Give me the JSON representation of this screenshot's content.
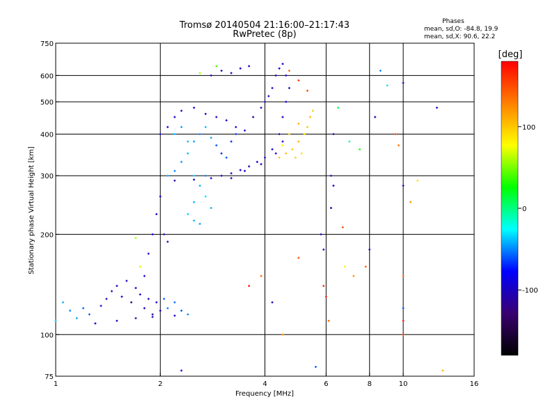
{
  "chart_data": {
    "type": "scatter",
    "title": "Tromsø 20140504 21:16:00–21:17:43",
    "subtitle": "RwPretec (8p)",
    "xlabel": "Frequency [MHz]",
    "ylabel": "Stationary phase Virtual Height [km]",
    "x_scale": "log2",
    "y_scale": "log",
    "xlim": [
      1,
      16
    ],
    "ylim": [
      75,
      750
    ],
    "x_ticks": [
      1,
      2,
      4,
      6,
      8,
      10,
      16
    ],
    "y_ticks": [
      75,
      100,
      200,
      300,
      400,
      500,
      600,
      750
    ],
    "x_grid": [
      2,
      4,
      6,
      8,
      10
    ],
    "y_grid": [
      100,
      200,
      300,
      400,
      500,
      600
    ],
    "grid": true,
    "phase_stats": {
      "heading": "Phases",
      "line_o": "mean, sd,O: -84.8, 19.9",
      "line_x": "mean, sd,X:  90.6, 22.2"
    },
    "colorbar": {
      "label": "[deg]",
      "range": [
        -180,
        180
      ],
      "ticks": [
        100,
        0,
        -100
      ],
      "colors": [
        "#000000",
        "#3a0070",
        "#0000ff",
        "#00ffff",
        "#00ff00",
        "#ffff00",
        "#ff8000",
        "#ff0000"
      ]
    },
    "points": [
      [
        1.0,
        110,
        -40
      ],
      [
        1.05,
        125,
        -40
      ],
      [
        1.1,
        118,
        -50
      ],
      [
        1.15,
        112,
        -45
      ],
      [
        1.2,
        120,
        -55
      ],
      [
        1.25,
        115,
        -60
      ],
      [
        1.3,
        108,
        -90
      ],
      [
        1.35,
        122,
        -95
      ],
      [
        1.4,
        128,
        -100
      ],
      [
        1.45,
        135,
        -95
      ],
      [
        1.5,
        140,
        -100
      ],
      [
        1.55,
        130,
        -105
      ],
      [
        1.6,
        145,
        -100
      ],
      [
        1.65,
        125,
        -110
      ],
      [
        1.7,
        138,
        -95
      ],
      [
        1.75,
        132,
        -100
      ],
      [
        1.8,
        120,
        -105
      ],
      [
        1.85,
        128,
        -100
      ],
      [
        1.9,
        115,
        -110
      ],
      [
        1.95,
        125,
        -95
      ],
      [
        2.0,
        118,
        -100
      ],
      [
        2.05,
        128,
        -60
      ],
      [
        2.1,
        120,
        -50
      ],
      [
        2.2,
        125,
        -55
      ],
      [
        2.3,
        118,
        -60
      ],
      [
        2.4,
        115,
        -50
      ],
      [
        1.5,
        110,
        -100
      ],
      [
        1.7,
        112,
        -105
      ],
      [
        1.9,
        113,
        -100
      ],
      [
        2.2,
        114,
        -95
      ],
      [
        1.8,
        150,
        -95
      ],
      [
        1.85,
        175,
        -100
      ],
      [
        1.9,
        200,
        -90
      ],
      [
        1.95,
        230,
        -100
      ],
      [
        2.0,
        260,
        -95
      ],
      [
        2.05,
        200,
        -100
      ],
      [
        2.1,
        190,
        -95
      ],
      [
        1.75,
        160,
        70
      ],
      [
        1.7,
        195,
        60
      ],
      [
        2.1,
        300,
        -40
      ],
      [
        2.2,
        310,
        -50
      ],
      [
        2.3,
        330,
        -45
      ],
      [
        2.4,
        350,
        -40
      ],
      [
        2.5,
        380,
        -45
      ],
      [
        2.6,
        400,
        -50
      ],
      [
        2.7,
        420,
        -40
      ],
      [
        2.8,
        390,
        -45
      ],
      [
        2.9,
        370,
        -60
      ],
      [
        3.0,
        350,
        -70
      ],
      [
        3.1,
        340,
        -60
      ],
      [
        3.2,
        380,
        -70
      ],
      [
        3.3,
        400,
        -65
      ],
      [
        2.2,
        400,
        -40
      ],
      [
        2.3,
        420,
        -45
      ],
      [
        2.4,
        380,
        -40
      ],
      [
        2.5,
        300,
        -35
      ],
      [
        2.6,
        280,
        -40
      ],
      [
        2.7,
        260,
        -30
      ],
      [
        2.8,
        240,
        -40
      ],
      [
        2.4,
        230,
        -35
      ],
      [
        2.5,
        220,
        -40
      ],
      [
        2.6,
        215,
        -45
      ],
      [
        2.5,
        250,
        -40
      ],
      [
        2.7,
        300,
        -50
      ],
      [
        2.0,
        400,
        -100
      ],
      [
        2.1,
        420,
        -95
      ],
      [
        2.2,
        450,
        -100
      ],
      [
        2.3,
        470,
        -100
      ],
      [
        2.5,
        480,
        -95
      ],
      [
        2.7,
        460,
        -100
      ],
      [
        2.9,
        450,
        -100
      ],
      [
        3.1,
        440,
        -95
      ],
      [
        3.3,
        420,
        -100
      ],
      [
        3.5,
        410,
        -90
      ],
      [
        3.7,
        450,
        -100
      ],
      [
        3.9,
        480,
        -95
      ],
      [
        4.0,
        500,
        -100
      ],
      [
        4.1,
        520,
        -100
      ],
      [
        4.2,
        550,
        -95
      ],
      [
        4.3,
        600,
        -100
      ],
      [
        4.4,
        630,
        -100
      ],
      [
        4.5,
        650,
        -95
      ],
      [
        4.6,
        600,
        -90
      ],
      [
        2.2,
        290,
        -100
      ],
      [
        2.5,
        292,
        -100
      ],
      [
        2.8,
        295,
        -95
      ],
      [
        3.0,
        300,
        -100
      ],
      [
        3.2,
        305,
        -95
      ],
      [
        3.4,
        312,
        -100
      ],
      [
        3.6,
        320,
        -100
      ],
      [
        3.8,
        330,
        -95
      ],
      [
        4.0,
        340,
        -100
      ],
      [
        4.2,
        360,
        -95
      ],
      [
        4.4,
        400,
        -100
      ],
      [
        4.5,
        450,
        -100
      ],
      [
        4.6,
        500,
        -95
      ],
      [
        4.7,
        550,
        -100
      ],
      [
        3.2,
        295,
        -100
      ],
      [
        3.5,
        310,
        -95
      ],
      [
        3.9,
        325,
        -100
      ],
      [
        4.3,
        350,
        -95
      ],
      [
        4.5,
        380,
        -100
      ],
      [
        3.0,
        620,
        -100
      ],
      [
        3.2,
        610,
        -95
      ],
      [
        3.4,
        630,
        -100
      ],
      [
        3.6,
        640,
        -95
      ],
      [
        2.8,
        600,
        -100
      ],
      [
        2.6,
        610,
        60
      ],
      [
        2.9,
        640,
        40
      ],
      [
        4.4,
        340,
        100
      ],
      [
        4.6,
        350,
        105
      ],
      [
        4.8,
        360,
        100
      ],
      [
        5.0,
        380,
        110
      ],
      [
        5.2,
        400,
        95
      ],
      [
        5.3,
        420,
        100
      ],
      [
        5.4,
        450,
        105
      ],
      [
        5.5,
        470,
        100
      ],
      [
        4.9,
        340,
        95
      ],
      [
        5.1,
        350,
        90
      ],
      [
        4.5,
        370,
        85
      ],
      [
        4.7,
        400,
        100
      ],
      [
        5.0,
        430,
        110
      ],
      [
        4.7,
        620,
        140
      ],
      [
        5.0,
        580,
        160
      ],
      [
        5.3,
        540,
        150
      ],
      [
        5.8,
        200,
        -100
      ],
      [
        5.9,
        180,
        -95
      ],
      [
        5.9,
        140,
        160
      ],
      [
        6.0,
        130,
        165
      ],
      [
        6.1,
        110,
        140
      ],
      [
        6.2,
        300,
        -100
      ],
      [
        6.3,
        280,
        -95
      ],
      [
        6.2,
        240,
        -100
      ],
      [
        6.3,
        400,
        -100
      ],
      [
        6.5,
        480,
        10
      ],
      [
        6.7,
        210,
        150
      ],
      [
        6.8,
        160,
        80
      ],
      [
        7.0,
        380,
        -10
      ],
      [
        7.5,
        360,
        30
      ],
      [
        7.2,
        150,
        120
      ],
      [
        7.8,
        160,
        140
      ],
      [
        8.0,
        180,
        -100
      ],
      [
        8.3,
        450,
        -100
      ],
      [
        8.6,
        620,
        -50
      ],
      [
        9.0,
        560,
        -30
      ],
      [
        9.5,
        400,
        150
      ],
      [
        9.7,
        370,
        130
      ],
      [
        10.0,
        280,
        -100
      ],
      [
        10.0,
        150,
        140
      ],
      [
        10.0,
        120,
        -60
      ],
      [
        10.0,
        110,
        170
      ],
      [
        10.0,
        100,
        160
      ],
      [
        10.0,
        570,
        -100
      ],
      [
        10.5,
        250,
        120
      ],
      [
        11.0,
        290,
        90
      ],
      [
        12.5,
        480,
        -100
      ],
      [
        13.0,
        78,
        110
      ],
      [
        5.6,
        80,
        -60
      ],
      [
        2.3,
        78,
        -80
      ],
      [
        3.6,
        140,
        170
      ],
      [
        3.9,
        150,
        140
      ],
      [
        4.2,
        125,
        -100
      ],
      [
        4.5,
        100,
        120
      ],
      [
        5.0,
        170,
        150
      ]
    ]
  }
}
